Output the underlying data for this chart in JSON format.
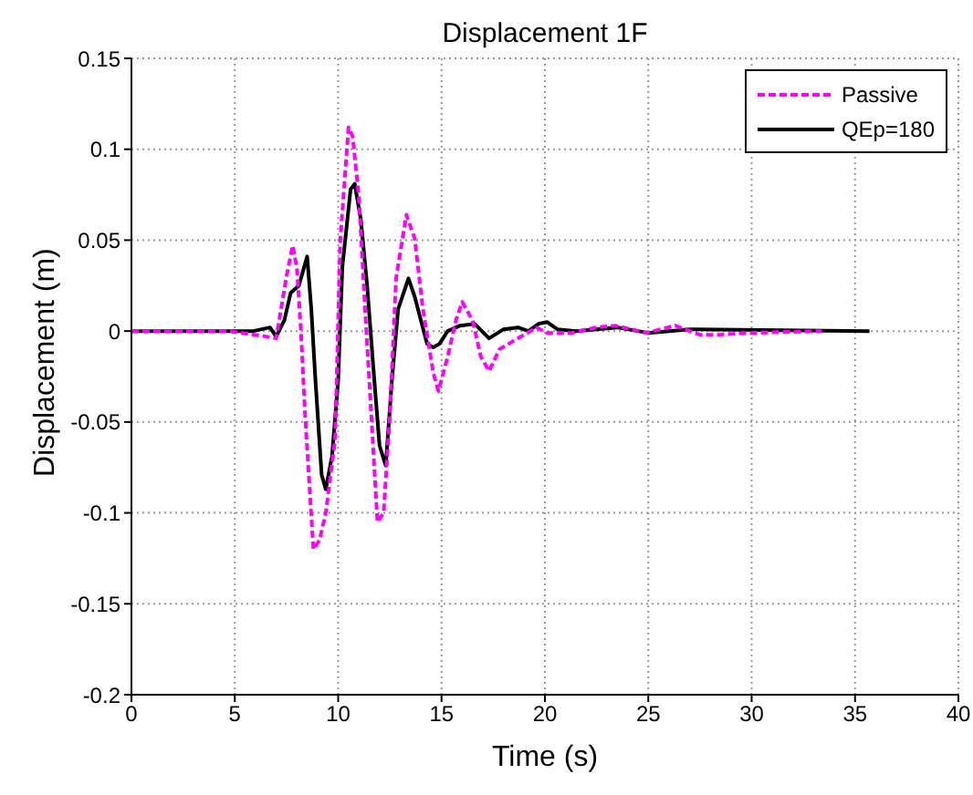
{
  "chart_data": {
    "type": "line",
    "title": "Displacement 1F",
    "xlabel": "Time (s)",
    "ylabel": "Displacement (m)",
    "xlim": [
      0,
      40
    ],
    "xticks": [
      0,
      5,
      10,
      15,
      20,
      25,
      30,
      35,
      40
    ],
    "ylim": [
      -0.2,
      0.15
    ],
    "yticks": [
      -0.2,
      -0.15,
      -0.1,
      -0.05,
      0,
      0.05,
      0.1,
      0.15
    ],
    "grid": true,
    "legend": "top right",
    "marker": "none",
    "series": [
      {
        "name": "Passive",
        "color": "#ff00ff",
        "line_style": "dashed",
        "x": [
          0,
          4.7,
          6.5,
          7.0,
          7.5,
          7.8,
          8.0,
          8.2,
          8.4,
          8.8,
          9.1,
          9.4,
          9.85,
          10.1,
          10.5,
          10.7,
          11.0,
          11.3,
          11.6,
          11.9,
          12.2,
          12.5,
          12.8,
          13.3,
          13.7,
          14.1,
          14.6,
          14.85,
          15.3,
          15.7,
          16.0,
          16.5,
          16.9,
          17.3,
          17.8,
          18.4,
          19.0,
          19.6,
          20.1,
          21.3,
          22.5,
          23.4,
          24.9,
          26.3,
          27.5,
          28.4,
          29.9,
          33.4
        ],
        "values": [
          0,
          0,
          -0.003,
          -0.004,
          0.03,
          0.047,
          0.035,
          0,
          -0.046,
          -0.12,
          -0.115,
          -0.1,
          -0.06,
          0.05,
          0.112,
          0.107,
          0.074,
          0.012,
          -0.046,
          -0.105,
          -0.1,
          -0.046,
          0.029,
          0.064,
          0.051,
          0.012,
          -0.023,
          -0.033,
          -0.014,
          0.006,
          0.016,
          0.006,
          -0.014,
          -0.022,
          -0.01,
          -0.006,
          -0.002,
          0.002,
          -0.001,
          -0.001,
          0.002,
          0.003,
          -0.001,
          0.003,
          -0.002,
          -0.002,
          -0.001,
          0
        ]
      },
      {
        "name": "QEp=180",
        "color": "#000000",
        "line_style": "solid",
        "x": [
          0,
          5.9,
          6.7,
          7.0,
          7.4,
          7.7,
          8.1,
          8.5,
          8.7,
          8.9,
          9.2,
          9.4,
          9.7,
          10.0,
          10.2,
          10.6,
          10.8,
          11.1,
          11.4,
          11.7,
          12.0,
          12.3,
          12.6,
          12.9,
          13.4,
          13.7,
          14.0,
          14.3,
          14.6,
          14.9,
          15.3,
          15.9,
          16.6,
          17.3,
          18.0,
          18.7,
          19.2,
          19.7,
          20.1,
          20.6,
          21.5,
          23.5,
          25.0,
          27.0,
          35.7
        ],
        "values": [
          0,
          0,
          0.002,
          -0.003,
          0.006,
          0.021,
          0.025,
          0.041,
          0.012,
          -0.027,
          -0.079,
          -0.087,
          -0.069,
          -0.027,
          0.035,
          0.078,
          0.081,
          0.061,
          0.025,
          -0.02,
          -0.063,
          -0.074,
          -0.027,
          0.012,
          0.029,
          0.019,
          0.006,
          -0.007,
          -0.009,
          -0.007,
          0,
          0.003,
          0.004,
          -0.004,
          0.001,
          0.002,
          0,
          0.004,
          0.005,
          0.001,
          0,
          0.002,
          -0.001,
          0.001,
          0
        ]
      }
    ]
  }
}
